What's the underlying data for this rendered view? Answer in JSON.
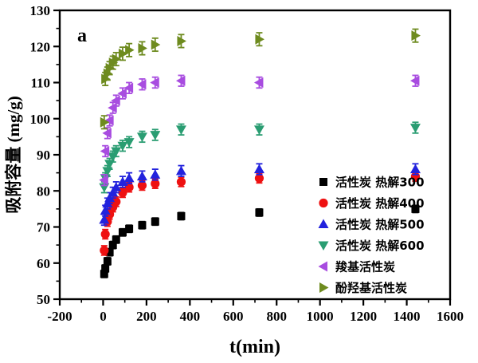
{
  "figure": {
    "panel_label": "a"
  },
  "axes": {
    "x": {
      "title": "t(min)",
      "tick_labels": [
        "-200",
        "0",
        "200",
        "400",
        "600",
        "800",
        "1000",
        "1200",
        "1400",
        "1600"
      ]
    },
    "y": {
      "title": "吸附容量 (mg/g)",
      "tick_labels": [
        "50",
        "60",
        "70",
        "80",
        "90",
        "100",
        "110",
        "120",
        "130"
      ]
    }
  },
  "legend": {
    "entries": [
      {
        "label": "活性炭  热解300",
        "marker": "square-icon",
        "color": "#000000"
      },
      {
        "label": "活性炭  热解400",
        "marker": "circle-icon",
        "color": "#ee1111"
      },
      {
        "label": "活性炭  热解500",
        "marker": "triangle-up-icon",
        "color": "#2222dd"
      },
      {
        "label": "活性炭  热解600",
        "marker": "triangle-down-icon",
        "color": "#2a9d72"
      },
      {
        "label": "羧基活性炭",
        "marker": "triangle-left-icon",
        "color": "#a84ce0"
      },
      {
        "label": "酚羟基活性炭",
        "marker": "triangle-right-icon",
        "color": "#6e8b1f"
      }
    ]
  },
  "chart_data": {
    "type": "scatter",
    "title": "",
    "xlabel": "t(min)",
    "ylabel": "吸附容量 (mg/g)",
    "xlim": [
      -200,
      1600
    ],
    "ylim": [
      50,
      130
    ],
    "x_major_tick_step": 200,
    "x_minor_tick_step": 100,
    "y_major_tick_step": 10,
    "y_minor_tick_step": 5,
    "grid": false,
    "error_bars": true,
    "legend_position": "inside-right",
    "x": [
      5,
      10,
      20,
      30,
      45,
      60,
      90,
      120,
      180,
      240,
      360,
      720,
      1440
    ],
    "series": [
      {
        "name": "活性炭  热解300",
        "marker": "square",
        "color": "#000000",
        "err": 1.0,
        "values": [
          57,
          58.5,
          60.5,
          63,
          65,
          66.5,
          68.5,
          69.5,
          70.5,
          71.5,
          73,
          74,
          75
        ]
      },
      {
        "name": "活性炭  热解400",
        "marker": "circle",
        "color": "#ee1111",
        "err": 1.3,
        "values": [
          63.5,
          68,
          71.5,
          73.5,
          75.5,
          77,
          79.5,
          81,
          81.5,
          82,
          82.5,
          83.5,
          84
        ]
      },
      {
        "name": "活性炭  热解500",
        "marker": "triangle-up",
        "color": "#2222dd",
        "err": 1.5,
        "values": [
          72,
          74.5,
          76.5,
          78,
          79.5,
          81,
          82.5,
          83.5,
          84,
          84.5,
          85.5,
          86,
          86
        ]
      },
      {
        "name": "活性炭  热解600",
        "marker": "triangle-down",
        "color": "#2a9d72",
        "err": 1.5,
        "values": [
          81,
          83.5,
          85.5,
          87.5,
          89.5,
          91,
          92.5,
          93.5,
          95,
          95.5,
          97,
          97,
          97.5
        ]
      },
      {
        "name": "羧基活性炭",
        "marker": "triangle-left",
        "color": "#a84ce0",
        "err": 1.5,
        "values": [
          83,
          91,
          96,
          99.5,
          103,
          105,
          107,
          108.5,
          109.5,
          110,
          110.5,
          110,
          110.5
        ]
      },
      {
        "name": "酚羟基活性炭",
        "marker": "triangle-right",
        "color": "#6e8b1f",
        "err": 1.8,
        "values": [
          99,
          111,
          112.5,
          114,
          115.5,
          116.5,
          118,
          119,
          119.5,
          120.5,
          121.5,
          122,
          123
        ]
      }
    ]
  }
}
